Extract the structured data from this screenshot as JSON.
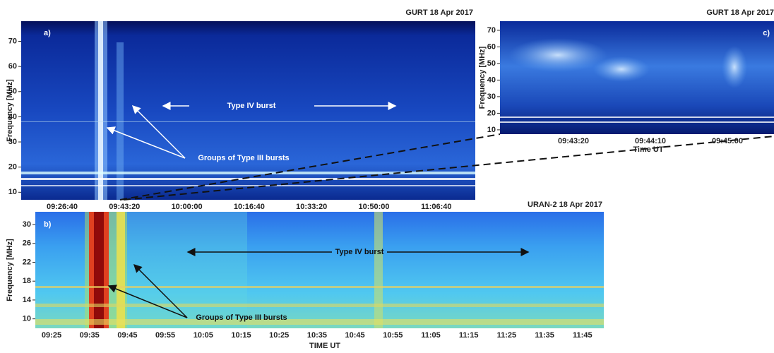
{
  "chart_data": [
    {
      "type": "spectrogram",
      "title": "GURT   18 Apr 2017",
      "panel_label": "a)",
      "ylabel": "Frequency [MHz]",
      "ylim": [
        7,
        78
      ],
      "yticks": [
        10,
        20,
        30,
        40,
        50,
        60,
        70
      ],
      "x_labels": [
        "09:26:40",
        "09:43:20",
        "10:00:00",
        "10:16:40",
        "10:33:20",
        "10:50:00",
        "11:06:40"
      ],
      "annotations": [
        "Type IV burst",
        "Groups of Type III bursts"
      ]
    },
    {
      "type": "spectrogram",
      "title": "URAN-2   18 Apr 2017",
      "panel_label": "b)",
      "ylabel": "Frequency [MHz]",
      "xlabel": "TIME UT",
      "ylim": [
        8,
        32.7
      ],
      "yticks": [
        10,
        14,
        18,
        22,
        26,
        30
      ],
      "x_labels": [
        "09:25",
        "09:35",
        "09:45",
        "09:55",
        "10:05",
        "10:15",
        "10:25",
        "10:35",
        "10:45",
        "10:55",
        "11:05",
        "11:15",
        "11:25",
        "11:35",
        "11:45"
      ],
      "annotations": [
        "Type IV burst",
        "Groups of Type III bursts"
      ]
    },
    {
      "type": "spectrogram",
      "title": "GURT   18 Apr 2017",
      "panel_label": "c)",
      "ylabel": "Frequency [MHz]",
      "xlabel": "Time UT",
      "ylim": [
        7.4,
        75.5
      ],
      "yticks": [
        10,
        20,
        30,
        40,
        50,
        60,
        70
      ],
      "x_labels": [
        "09:43:20",
        "09:44:10",
        "09:45:00"
      ]
    }
  ]
}
